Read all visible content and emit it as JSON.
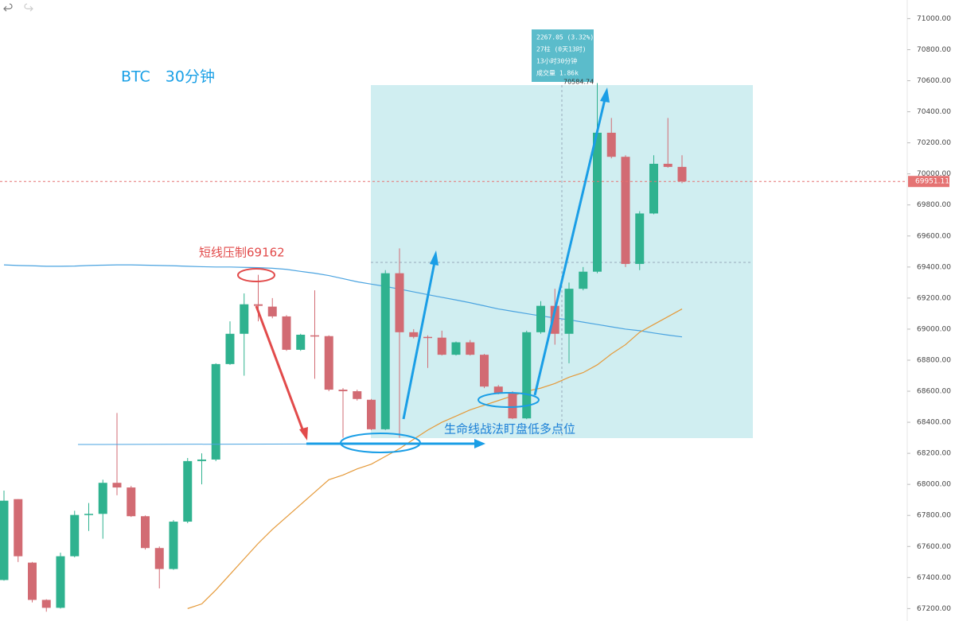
{
  "chart_data": {
    "type": "candlestick",
    "title": "BTC　30分钟",
    "annotations": {
      "resistance": "短线压制69162",
      "strategy": "生命线战法盯盘低多点位"
    },
    "measure": {
      "lines": [
        "2267.05 (3.32%)",
        "27柱 (0天13时)",
        "13小时30分钟",
        "成交量 1.86k"
      ],
      "high_label": "70584.74"
    },
    "last_price": 69951.11,
    "up_color": "#2fb28f",
    "down_color": "#d26b73",
    "open": [
      67384,
      67905,
      67496,
      67256,
      67205,
      67537,
      67803,
      67810,
      68010,
      67980,
      67795,
      67590,
      67455,
      67760,
      68150,
      68160,
      68775,
      68970,
      69160,
      69145,
      69082,
      68867,
      68960,
      68955,
      68610,
      68600,
      68545,
      68355,
      69360,
      68980,
      68950,
      68945,
      68835,
      68915,
      68835,
      68630,
      68590,
      68425,
      68980,
      69150,
      68970,
      69260,
      69370,
      70265,
      70110,
      69420,
      69745,
      70065,
      70045
    ],
    "high": [
      67960,
      67905,
      67500,
      67260,
      67560,
      67830,
      67880,
      68030,
      68460,
      67990,
      67800,
      67600,
      67770,
      68170,
      68200,
      68780,
      69050,
      69230,
      69350,
      69200,
      69090,
      68970,
      69250,
      68960,
      68620,
      68610,
      68550,
      69380,
      69520,
      69000,
      68960,
      68990,
      68920,
      68930,
      68840,
      68640,
      68600,
      68990,
      69180,
      69260,
      69300,
      69400,
      70584.74,
      70360,
      70120,
      69760,
      70120,
      70360,
      70120
    ],
    "low": [
      67380,
      67500,
      67240,
      67180,
      67200,
      67530,
      67700,
      67650,
      67930,
      67790,
      67580,
      67330,
      67450,
      67750,
      68000,
      68150,
      68770,
      68700,
      69050,
      69070,
      68860,
      68860,
      68680,
      68600,
      68300,
      68540,
      68350,
      68350,
      68300,
      68940,
      68750,
      68830,
      68830,
      68830,
      68620,
      68580,
      68420,
      68420,
      68970,
      68900,
      68780,
      69250,
      69360,
      70100,
      69400,
      69380,
      69740,
      70040,
      69940
    ],
    "close": [
      67895,
      67537,
      67256,
      67205,
      67537,
      67803,
      67810,
      68010,
      67980,
      67795,
      67590,
      67455,
      67760,
      68150,
      68160,
      68775,
      68970,
      69160,
      69150,
      69082,
      68867,
      68964,
      68955,
      68610,
      68600,
      68550,
      68355,
      69360,
      68980,
      68950,
      68945,
      68835,
      68915,
      68835,
      68630,
      68590,
      68425,
      68980,
      69150,
      68970,
      69260,
      69370,
      70265,
      70110,
      69420,
      69745,
      70065,
      70045,
      69951
    ],
    "lines": [
      {
        "color": "#4aa3e0",
        "values": [
          69414,
          69410,
          69408,
          69405,
          69405,
          69406,
          69410,
          69412,
          69414,
          69414,
          69412,
          69410,
          69408,
          69405,
          69402,
          69400,
          69400,
          69398,
          69396,
          69392,
          69385,
          69372,
          69360,
          69345,
          69325,
          69305,
          69290,
          69275,
          69258,
          69240,
          69222,
          69205,
          69188,
          69170,
          69150,
          69130,
          69115,
          69100,
          69085,
          69072,
          69060,
          69045,
          69030,
          69015,
          69000,
          68990,
          68975,
          68962,
          68950
        ]
      },
      {
        "color": "#e59a3a",
        "values": [
          null,
          null,
          null,
          null,
          null,
          null,
          null,
          null,
          null,
          null,
          null,
          null,
          null,
          67200,
          67230,
          67320,
          67420,
          67520,
          67620,
          67710,
          67790,
          67870,
          67950,
          68030,
          68060,
          68100,
          68130,
          68180,
          68230,
          68290,
          68350,
          68400,
          68440,
          68480,
          68510,
          68540,
          68570,
          68600,
          68620,
          68650,
          68690,
          68720,
          68770,
          68840,
          68900,
          68980,
          69030,
          69080,
          69130
        ]
      }
    ],
    "ylim": [
      67120,
      71120
    ],
    "yticks": [
      {
        "value": 67200,
        "label": "67200.00"
      },
      {
        "value": 67400,
        "label": "67400.00"
      },
      {
        "value": 67600,
        "label": "67600.00"
      },
      {
        "value": 67800,
        "label": "67800.00"
      },
      {
        "value": 68000,
        "label": "68000.00"
      },
      {
        "value": 68200,
        "label": "68200.00"
      },
      {
        "value": 68400,
        "label": "68400.00"
      },
      {
        "value": 68600,
        "label": "68600.00"
      },
      {
        "value": 68800,
        "label": "68800.00"
      },
      {
        "value": 69000,
        "label": "69000.00"
      },
      {
        "value": 69200,
        "label": "69200.00"
      },
      {
        "value": 69400,
        "label": "69400.00"
      },
      {
        "value": 69600,
        "label": "69600.00"
      },
      {
        "value": 69800,
        "label": "69800.00"
      },
      {
        "value": 70000,
        "label": "70000.00"
      },
      {
        "value": 70200,
        "label": "70200.00"
      },
      {
        "value": 70400,
        "label": "70400.00"
      },
      {
        "value": 70600,
        "label": "70600.00"
      },
      {
        "value": 70800,
        "label": "70800.00"
      },
      {
        "value": 71000,
        "label": "71000.00"
      }
    ]
  }
}
